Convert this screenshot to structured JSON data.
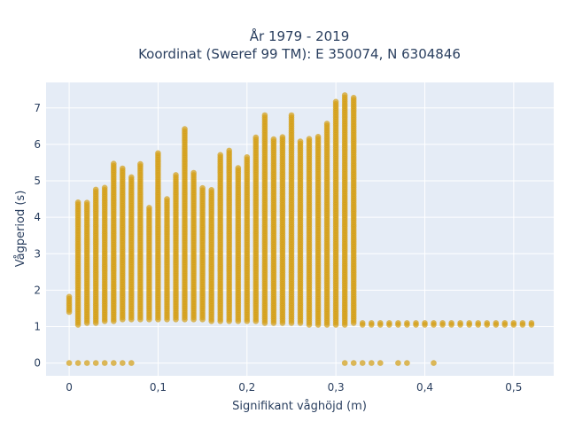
{
  "chart_data": {
    "type": "scatter",
    "title_line1": "År 1979 - 2019",
    "title_line2": "Koordinat (Sweref 99 TM): E 350074, N 6304846",
    "xlabel": "Signifikant våghöjd (m)",
    "ylabel": "Vågperiod (s)",
    "xlim": [
      -0.026,
      0.545
    ],
    "ylim": [
      -0.35,
      7.7
    ],
    "xticks": [
      0,
      0.1,
      0.2,
      0.3,
      0.4,
      0.5
    ],
    "xtick_labels": [
      "0",
      "0,1",
      "0,2",
      "0,3",
      "0,4",
      "0,5"
    ],
    "yticks": [
      0,
      1,
      2,
      3,
      4,
      5,
      6,
      7
    ],
    "ytick_labels": [
      "0",
      "1",
      "2",
      "3",
      "4",
      "5",
      "6",
      "7"
    ],
    "grid": true,
    "legend": "none",
    "marker_color": "#d4a017",
    "plot_bg": "#e5e5f0",
    "series": [
      {
        "columns": [
          {
            "x": 0.0,
            "ymin": 1.4,
            "ymax": 1.85
          },
          {
            "x": 0.01,
            "ymin": 1.05,
            "ymax": 4.45
          },
          {
            "x": 0.02,
            "ymin": 1.1,
            "ymax": 4.4
          },
          {
            "x": 0.03,
            "ymin": 1.1,
            "ymax": 4.8
          },
          {
            "x": 0.04,
            "ymin": 1.15,
            "ymax": 4.85
          },
          {
            "x": 0.05,
            "ymin": 1.15,
            "ymax": 5.5
          },
          {
            "x": 0.06,
            "ymin": 1.2,
            "ymax": 5.35
          },
          {
            "x": 0.07,
            "ymin": 1.2,
            "ymax": 5.15
          },
          {
            "x": 0.08,
            "ymin": 1.2,
            "ymax": 5.5
          },
          {
            "x": 0.09,
            "ymin": 1.2,
            "ymax": 4.3
          },
          {
            "x": 0.1,
            "ymin": 1.2,
            "ymax": 5.8
          },
          {
            "x": 0.11,
            "ymin": 1.2,
            "ymax": 4.5
          },
          {
            "x": 0.12,
            "ymin": 1.2,
            "ymax": 5.2
          },
          {
            "x": 0.13,
            "ymin": 1.2,
            "ymax": 6.45
          },
          {
            "x": 0.14,
            "ymin": 1.2,
            "ymax": 5.25
          },
          {
            "x": 0.15,
            "ymin": 1.2,
            "ymax": 4.8
          },
          {
            "x": 0.16,
            "ymin": 1.15,
            "ymax": 4.8
          },
          {
            "x": 0.17,
            "ymin": 1.15,
            "ymax": 5.75
          },
          {
            "x": 0.18,
            "ymin": 1.15,
            "ymax": 5.85
          },
          {
            "x": 0.19,
            "ymin": 1.15,
            "ymax": 5.4
          },
          {
            "x": 0.2,
            "ymin": 1.15,
            "ymax": 5.7
          },
          {
            "x": 0.21,
            "ymin": 1.15,
            "ymax": 6.2
          },
          {
            "x": 0.22,
            "ymin": 1.1,
            "ymax": 6.8
          },
          {
            "x": 0.23,
            "ymin": 1.1,
            "ymax": 6.15
          },
          {
            "x": 0.24,
            "ymin": 1.1,
            "ymax": 6.2
          },
          {
            "x": 0.25,
            "ymin": 1.1,
            "ymax": 6.8
          },
          {
            "x": 0.26,
            "ymin": 1.1,
            "ymax": 6.1
          },
          {
            "x": 0.27,
            "ymin": 1.05,
            "ymax": 6.2
          },
          {
            "x": 0.28,
            "ymin": 1.05,
            "ymax": 6.25
          },
          {
            "x": 0.29,
            "ymin": 1.05,
            "ymax": 6.6
          },
          {
            "x": 0.3,
            "ymin": 1.05,
            "ymax": 7.2
          },
          {
            "x": 0.31,
            "ymin": 1.05,
            "ymax": 7.35
          },
          {
            "x": 0.32,
            "ymin": 1.1,
            "ymax": 7.3
          }
        ]
      }
    ]
  }
}
